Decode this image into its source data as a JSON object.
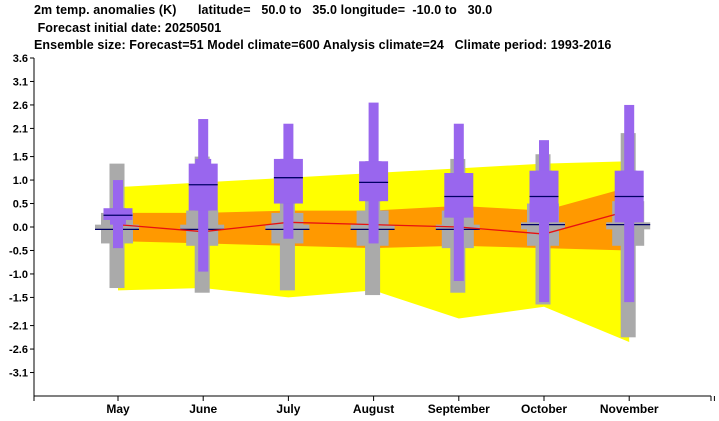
{
  "header": {
    "line1": "2m temp. anomalies (K)      latitude=   50.0 to   35.0 longitude=  -10.0 to   30.0",
    "line2": " Forecast initial date: 20250501",
    "line3": "Ensemble size: Forecast=51 Model climate=600 Analysis climate=24   Climate period: 1993-2016"
  },
  "chart_data": {
    "type": "boxplot",
    "ylim": [
      -3.6,
      3.6
    ],
    "yticks": [
      "3.6",
      "3.1",
      "2.6",
      "2.1",
      "1.5",
      "1.0",
      "0.5",
      "0.0",
      "-0.5",
      "-1.0",
      "-1.5",
      "-2.1",
      "-2.6",
      "-3.1"
    ],
    "ytick_values": [
      3.6,
      3.1,
      2.6,
      2.1,
      1.5,
      1.0,
      0.5,
      0.0,
      -0.5,
      -1.0,
      -1.5,
      -2.1,
      -2.6,
      -3.1
    ],
    "categories": [
      "May",
      "June",
      "July",
      "August",
      "September",
      "October",
      "November"
    ],
    "grid": false,
    "colors": {
      "forecast": "#9966ee",
      "climate": "#aaaaaa",
      "outer_band": "#ffff00",
      "inner_band": "#ff9900",
      "analysis_line": "#e81010",
      "median": "#000066"
    },
    "outer_band": {
      "upper": [
        0.85,
        0.95,
        1.05,
        1.15,
        1.25,
        1.35,
        1.4
      ],
      "lower": [
        -1.35,
        -1.3,
        -1.5,
        -1.35,
        -1.95,
        -1.7,
        -2.45
      ]
    },
    "inner_band": {
      "upper": [
        0.3,
        0.3,
        0.35,
        0.35,
        0.45,
        0.35,
        0.85
      ],
      "lower": [
        -0.3,
        -0.35,
        -0.4,
        -0.45,
        -0.4,
        -0.45,
        -0.5
      ]
    },
    "analysis_line": [
      0.05,
      -0.1,
      0.1,
      0.05,
      0.0,
      -0.15,
      0.35
    ],
    "climate": [
      {
        "min": -1.3,
        "p10": -0.35,
        "p25": -0.05,
        "median": -0.05,
        "p75": 0.05,
        "p90": 0.3,
        "max": 1.35
      },
      {
        "min": -1.4,
        "p10": -0.4,
        "p25": -0.05,
        "median": -0.05,
        "p75": 0.05,
        "p90": 0.35,
        "max": 1.5
      },
      {
        "min": -1.35,
        "p10": -0.35,
        "p25": -0.05,
        "median": -0.05,
        "p75": 0.05,
        "p90": 0.3,
        "max": 1.45
      },
      {
        "min": -1.45,
        "p10": -0.4,
        "p25": -0.05,
        "median": -0.05,
        "p75": 0.05,
        "p90": 0.35,
        "max": 1.4
      },
      {
        "min": -1.4,
        "p10": -0.45,
        "p25": -0.05,
        "median": -0.05,
        "p75": 0.05,
        "p90": 0.35,
        "max": 1.45
      },
      {
        "min": -1.65,
        "p10": -0.4,
        "p25": -0.05,
        "median": 0.05,
        "p75": 0.1,
        "p90": 0.5,
        "max": 1.55
      },
      {
        "min": -2.35,
        "p10": -0.4,
        "p25": -0.05,
        "median": 0.05,
        "p75": 0.1,
        "p90": 0.55,
        "max": 2.0
      }
    ],
    "forecast": [
      {
        "min": -0.45,
        "p10": 0.05,
        "p25": 0.15,
        "median": 0.25,
        "p75": 0.4,
        "p90": 0.4,
        "max": 1.0
      },
      {
        "min": -0.95,
        "p10": 0.35,
        "p25": 0.35,
        "median": 0.9,
        "p75": 1.35,
        "p90": 1.45,
        "max": 2.3
      },
      {
        "min": -0.25,
        "p10": 0.5,
        "p25": 0.5,
        "median": 1.05,
        "p75": 1.45,
        "p90": 1.45,
        "max": 2.2
      },
      {
        "min": -0.35,
        "p10": 0.55,
        "p25": 0.55,
        "median": 0.95,
        "p75": 1.4,
        "p90": 1.4,
        "max": 2.65
      },
      {
        "min": -1.15,
        "p10": 0.2,
        "p25": 0.2,
        "median": 0.65,
        "p75": 1.15,
        "p90": 1.15,
        "max": 2.2
      },
      {
        "min": -1.6,
        "p10": 0.1,
        "p25": 0.1,
        "median": 0.65,
        "p75": 1.2,
        "p90": 1.2,
        "max": 1.85
      },
      {
        "min": -1.6,
        "p10": 0.1,
        "p25": 0.1,
        "median": 0.65,
        "p75": 1.2,
        "p90": 1.2,
        "max": 2.6
      }
    ]
  }
}
